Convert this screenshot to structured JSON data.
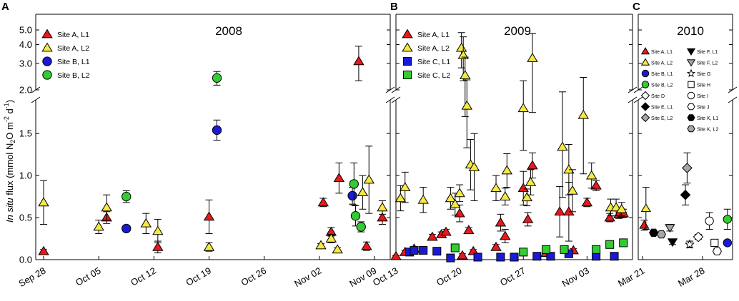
{
  "chart_data": {
    "type": "scatter",
    "ylabel": {
      "pre": "In situ",
      "main": "flux (mmol N",
      "sub2": "2",
      "mid": "O m",
      "sup1": "-2",
      "d": " d",
      "sup2": "-1",
      "close": ")"
    },
    "y_ticks_lower": [
      "0.0",
      "0.5",
      "1.0",
      "1.5"
    ],
    "y_ticks_upper": [
      "2.0",
      "3.0",
      "4.0",
      "5.0"
    ],
    "panels": [
      {
        "id": "A",
        "year": "2008",
        "xlim": [
          -1,
          44
        ],
        "x_ticks": [
          {
            "v": 0,
            "label": "Sep 28"
          },
          {
            "v": 7,
            "label": "Oct 05"
          },
          {
            "v": 14,
            "label": "Oct 12"
          },
          {
            "v": 21,
            "label": "Oct 19"
          },
          {
            "v": 28,
            "label": "Oct 26"
          },
          {
            "v": 35,
            "label": "Nov 02"
          },
          {
            "v": 42,
            "label": "Nov 09"
          }
        ],
        "legend": [
          {
            "name": "Site A, L1",
            "marker": "triangle",
            "color": "#e8191d"
          },
          {
            "name": "Site A, L2",
            "marker": "triangle",
            "color": "#f5e942"
          },
          {
            "name": "Site B, L1",
            "marker": "circle",
            "color": "#1a1ad6"
          },
          {
            "name": "Site B, L2",
            "marker": "circle",
            "color": "#33cc33"
          }
        ],
        "series": [
          {
            "name": "Site A, L1",
            "points": [
              [
                0,
                0.1,
                0.02
              ],
              [
                8,
                0.5,
                0.07
              ],
              [
                14.5,
                0.15,
                0.07
              ],
              [
                21,
                0.51,
                0.2
              ],
              [
                35.5,
                0.68,
                0.05
              ],
              [
                36.5,
                0.33,
                0.05
              ],
              [
                37.5,
                0.97,
                0.18
              ],
              [
                40,
                3.1,
                0.8
              ],
              [
                41,
                0.16,
                0.05
              ],
              [
                43,
                0.5,
                0.08
              ]
            ]
          },
          {
            "name": "Site A, L2",
            "points": [
              [
                0,
                0.68,
                0.26
              ],
              [
                7,
                0.39,
                0.08
              ],
              [
                8,
                0.62,
                0.15
              ],
              [
                13,
                0.43,
                0.12
              ],
              [
                14.5,
                0.34,
                0.14
              ],
              [
                21,
                0.15,
                0.05
              ],
              [
                35.2,
                0.17,
                0.02
              ],
              [
                36.5,
                0.25,
                0.05
              ],
              [
                37.3,
                0.12,
                0.02
              ],
              [
                40.5,
                0.8,
                0.2
              ],
              [
                41.3,
                0.95,
                0.4
              ],
              [
                43,
                0.62,
                0.08
              ]
            ]
          },
          {
            "name": "Site B, L1",
            "points": [
              [
                10.5,
                0.37,
                0.03
              ],
              [
                22,
                1.54,
                0.12
              ],
              [
                39.2,
                0.76,
                0.1
              ]
            ]
          },
          {
            "name": "Site B, L2",
            "points": [
              [
                10.5,
                0.75,
                0.07
              ],
              [
                22,
                2.4,
                0.25
              ],
              [
                39.4,
                0.9,
                0.25
              ],
              [
                39.6,
                0.52,
                0.12
              ],
              [
                40.3,
                0.39,
                0.06
              ]
            ]
          }
        ]
      },
      {
        "id": "B",
        "year": "2009",
        "xlim": [
          0,
          26
        ],
        "x_ticks": [
          {
            "v": 0,
            "label": "Oct 13"
          },
          {
            "v": 7,
            "label": "Oct 20"
          },
          {
            "v": 14,
            "label": "Oct 27"
          },
          {
            "v": 21,
            "label": "Nov 03"
          }
        ],
        "legend": [
          {
            "name": "Site A, L1",
            "marker": "triangle",
            "color": "#e8191d"
          },
          {
            "name": "Site A, L2",
            "marker": "triangle",
            "color": "#f5e942"
          },
          {
            "name": "Site C, L1",
            "marker": "square",
            "color": "#1a1ad6"
          },
          {
            "name": "Site C, L2",
            "marker": "square",
            "color": "#33cc33"
          }
        ],
        "series": [
          {
            "name": "Site A, L1",
            "points": [
              [
                0,
                0.04,
                0.01
              ],
              [
                1,
                0.09,
                0.02
              ],
              [
                2,
                0.13,
                0.02
              ],
              [
                4,
                0.27,
                0.03
              ],
              [
                5,
                0.3,
                0.03
              ],
              [
                5.5,
                0.33,
                0.03
              ],
              [
                7,
                0.55,
                0.1
              ],
              [
                7.3,
                0.05,
                0.02
              ],
              [
                8,
                0.35,
                0.03
              ],
              [
                8.5,
                0.1,
                0.02
              ],
              [
                11,
                0.15,
                0.03
              ],
              [
                11.5,
                0.44,
                0.1
              ],
              [
                12,
                0.28,
                0.08
              ],
              [
                14,
                0.85,
                0.2
              ],
              [
                14.5,
                0.48,
                0.08
              ],
              [
                15,
                1.12,
                0.15
              ],
              [
                16.5,
                0.08,
                0.02
              ],
              [
                18,
                0.57,
                0.3
              ],
              [
                19,
                0.57,
                0.35
              ],
              [
                19.5,
                0.11,
                0.02
              ],
              [
                21,
                0.68,
                0.05
              ],
              [
                22,
                0.88,
                0.06
              ],
              [
                23.5,
                0.5,
                0.05
              ],
              [
                24.5,
                0.54,
                0.05
              ],
              [
                25,
                0.55,
                0.05
              ]
            ]
          },
          {
            "name": "Site A, L2",
            "points": [
              [
                0.5,
                0.73,
                0.15
              ],
              [
                1,
                0.86,
                0.18
              ],
              [
                3,
                0.71,
                0.15
              ],
              [
                6,
                0.73,
                0.13
              ],
              [
                6.5,
                0.66,
                0.13
              ],
              [
                7,
                0.79,
                0.1
              ],
              [
                7.2,
                3.8,
                1.0
              ],
              [
                7.4,
                3.4,
                1.1
              ],
              [
                7.6,
                2.5,
                0.8
              ],
              [
                7.8,
                1.83,
                0.5
              ],
              [
                8.2,
                1.13,
                0.3
              ],
              [
                8.6,
                1.1,
                0.4
              ],
              [
                11,
                0.85,
                0.15
              ],
              [
                12,
                0.75,
                0.1
              ],
              [
                12.2,
                1.06,
                0.2
              ],
              [
                14,
                1.8,
                0.5
              ],
              [
                14.4,
                0.74,
                0.1
              ],
              [
                14.8,
                0.92,
                0.15
              ],
              [
                15,
                3.25,
                1.5
              ],
              [
                18.3,
                1.34,
                0.6
              ],
              [
                19,
                1.07,
                0.3
              ],
              [
                19.4,
                0.82,
                0.25
              ],
              [
                20.6,
                1.72,
                0.7
              ],
              [
                21.5,
                1.0,
                0.15
              ],
              [
                23.6,
                0.62,
                0.1
              ],
              [
                24.2,
                0.62,
                0.1
              ],
              [
                24.8,
                0.6,
                0.08
              ]
            ]
          },
          {
            "name": "Site C, L1",
            "points": [
              [
                1.5,
                0.09,
                0.02
              ],
              [
                2,
                0.11,
                0.03
              ],
              [
                3,
                0.11,
                0.03
              ],
              [
                4.5,
                0.1,
                0.02
              ],
              [
                6,
                0.02,
                0.01
              ],
              [
                9,
                0.03,
                0.01
              ],
              [
                11.5,
                0.03,
                0.01
              ],
              [
                13,
                0.03,
                0.01
              ],
              [
                15.5,
                0.04,
                0.01
              ],
              [
                17,
                0.04,
                0.01
              ],
              [
                19,
                0.07,
                0.01
              ],
              [
                22,
                0.04,
                0.01
              ],
              [
                24,
                0.04,
                0.01
              ]
            ]
          },
          {
            "name": "Site C, L2",
            "points": [
              [
                6.5,
                0.14,
                0.02
              ],
              [
                14,
                0.09,
                0.02
              ],
              [
                16.5,
                0.12,
                0.02
              ],
              [
                18.5,
                0.12,
                0.02
              ],
              [
                22,
                0.12,
                0.02
              ],
              [
                23.5,
                0.18,
                0.03
              ],
              [
                25,
                0.2,
                0.03
              ]
            ]
          }
        ]
      },
      {
        "id": "C",
        "year": "2010",
        "xlim": [
          -0.5,
          10.5
        ],
        "x_ticks": [
          {
            "v": 0,
            "label": "Mar 21"
          },
          {
            "v": 7,
            "label": "Mar 28"
          }
        ],
        "legend": [
          {
            "name": "Site A, L1",
            "marker": "triangle",
            "color": "#e8191d"
          },
          {
            "name": "Site A, L2",
            "marker": "triangle",
            "color": "#f5e942"
          },
          {
            "name": "Site B, L1",
            "marker": "circle",
            "color": "#1a1ad6"
          },
          {
            "name": "Site B, L2",
            "marker": "circle",
            "color": "#33cc33"
          },
          {
            "name": "Site D",
            "marker": "diamond",
            "color": "#ffffff"
          },
          {
            "name": "Site E, L1",
            "marker": "diamond",
            "color": "#000000"
          },
          {
            "name": "Site E, L2",
            "marker": "diamond",
            "color": "#a6a6a6"
          },
          {
            "name": "Site F, L1",
            "marker": "triangle-down",
            "color": "#000000"
          },
          {
            "name": "Site F, L2",
            "marker": "triangle-down",
            "color": "#a6a6a6"
          },
          {
            "name": "Site G",
            "marker": "star",
            "color": "#ffffff"
          },
          {
            "name": "Site H",
            "marker": "square",
            "color": "#ffffff"
          },
          {
            "name": "Site I",
            "marker": "circle",
            "color": "#ffffff"
          },
          {
            "name": "Site J",
            "marker": "hexagon",
            "color": "#ffffff"
          },
          {
            "name": "Site K, L1",
            "marker": "hexagon",
            "color": "#000000"
          },
          {
            "name": "Site K, L2",
            "marker": "hexagon",
            "color": "#a6a6a6"
          }
        ],
        "series": [
          {
            "name": "Site A, L1",
            "points": [
              [
                0.2,
                0.41,
                0.06
              ]
            ]
          },
          {
            "name": "Site A, L2",
            "points": [
              [
                0.4,
                0.61,
                0.25
              ]
            ]
          },
          {
            "name": "Site B, L1",
            "points": [
              [
                9.9,
                0.2,
                0.02
              ]
            ]
          },
          {
            "name": "Site B, L2",
            "points": [
              [
                9.9,
                0.48,
                0.12
              ]
            ]
          },
          {
            "name": "Site D",
            "points": [
              [
                6.5,
                0.27,
                0.03
              ]
            ]
          },
          {
            "name": "Site E, L1",
            "points": [
              [
                5,
                0.77,
                0.12
              ]
            ]
          },
          {
            "name": "Site E, L2",
            "points": [
              [
                5.2,
                1.09,
                0.18
              ]
            ]
          },
          {
            "name": "Site F, L1",
            "points": [
              [
                3.5,
                0.21,
                0.03
              ]
            ]
          },
          {
            "name": "Site F, L2",
            "points": [
              [
                3.2,
                0.38,
                0.04
              ]
            ]
          },
          {
            "name": "Site G",
            "points": [
              [
                5.5,
                0.18,
                0.04
              ]
            ]
          },
          {
            "name": "Site H",
            "points": [
              [
                8.4,
                0.2,
                0.04
              ]
            ]
          },
          {
            "name": "Site I",
            "points": [
              [
                7.8,
                0.46,
                0.1
              ]
            ]
          },
          {
            "name": "Site J",
            "points": [
              [
                8.7,
                0.1,
                0.03
              ]
            ]
          },
          {
            "name": "Site K, L1",
            "points": [
              [
                1.3,
                0.32,
                0.03
              ]
            ]
          },
          {
            "name": "Site K, L2",
            "points": [
              [
                2.2,
                0.3,
                0.03
              ]
            ]
          }
        ]
      }
    ]
  }
}
